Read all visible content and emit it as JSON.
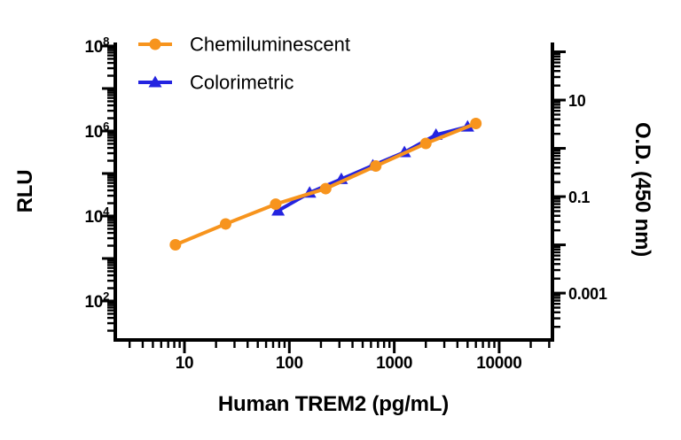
{
  "figure": {
    "background": "#ffffff",
    "ink_color": "#000000"
  },
  "legend": {
    "position": "top-left",
    "items": [
      {
        "label": "Chemiluminescent",
        "marker": "circle",
        "color": "#F7941D"
      },
      {
        "label": "Colorimetric",
        "marker": "triangle",
        "color": "#2424E0"
      }
    ]
  },
  "axes": {
    "x": {
      "title": "Human TREM2 (pg/mL)",
      "scale": "log",
      "ticks": [
        {
          "label": "10",
          "value": 10
        },
        {
          "label": "100",
          "value": 100
        },
        {
          "label": "1000",
          "value": 1000
        },
        {
          "label": "10000",
          "value": 10000
        }
      ]
    },
    "y_left": {
      "title": "RLU",
      "scale": "log",
      "ticks": [
        {
          "base": "10",
          "exp": "8",
          "value": 100000000
        },
        {
          "base": "10",
          "exp": "6",
          "value": 1000000
        },
        {
          "base": "10",
          "exp": "4",
          "value": 10000
        },
        {
          "base": "10",
          "exp": "2",
          "value": 100
        }
      ]
    },
    "y_right": {
      "title": "O.D. (450 nm)",
      "scale": "log",
      "ticks": [
        {
          "label": "10",
          "value": 10
        },
        {
          "label": "0.1",
          "value": 0.1
        },
        {
          "label": "0.001",
          "value": 0.001
        }
      ]
    }
  },
  "chart_data": {
    "type": "line",
    "title": "",
    "xlabel": "Human TREM2 (pg/mL)",
    "ylabel_left": "RLU",
    "ylabel_right": "O.D. (450 nm)",
    "x_scale": "log",
    "y_scale": "log",
    "xlim": [
      2.19,
      32200
    ],
    "ylim_left": [
      12.1,
      121000000
    ],
    "ylim_right": [
      0.000107,
      156
    ],
    "grid": false,
    "legend_position": "top-left",
    "series": [
      {
        "name": "Chemiluminescent",
        "axis": "left",
        "color": "#F7941D",
        "marker": "circle",
        "x": [
          8.2,
          24.7,
          74.1,
          222,
          667,
          2000,
          6000
        ],
        "y": [
          2100,
          6500,
          19000,
          44000,
          150000,
          510000,
          1500000
        ]
      },
      {
        "name": "Colorimetric",
        "axis": "right",
        "color": "#2424E0",
        "marker": "triangle",
        "x": [
          78.1,
          156,
          313,
          625,
          1250,
          2500,
          5000
        ],
        "y": [
          0.051,
          0.12,
          0.23,
          0.44,
          0.83,
          1.9,
          2.8
        ]
      }
    ]
  }
}
